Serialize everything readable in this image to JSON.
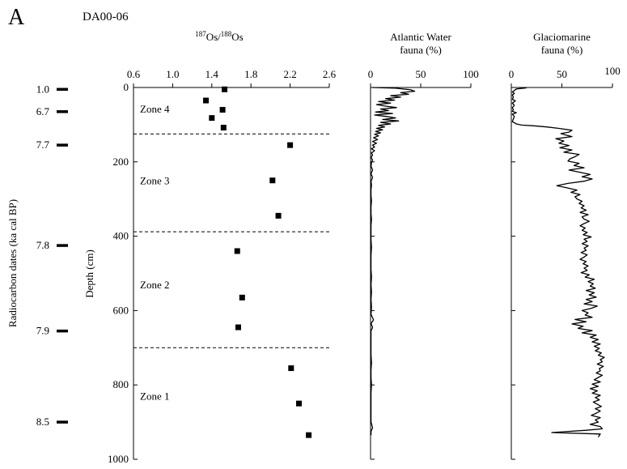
{
  "panel_label": "A",
  "core_label": "DA00-06",
  "y_axis": {
    "label": "Depth (cm)",
    "lim": [
      0,
      1000
    ],
    "ticks": [
      0,
      200,
      400,
      600,
      800,
      1000
    ],
    "tick_labels": [
      "0",
      "200",
      "400",
      "600",
      "800",
      "1000"
    ]
  },
  "radiocarbon": {
    "label": "Radiocarbon dates (ka cal BP)",
    "dates": [
      {
        "depth": 5,
        "label": "1.0"
      },
      {
        "depth": 65,
        "label": "6.7"
      },
      {
        "depth": 155,
        "label": "7.7"
      },
      {
        "depth": 425,
        "label": "7.8"
      },
      {
        "depth": 655,
        "label": "7.9"
      },
      {
        "depth": 900,
        "label": "8.5"
      }
    ]
  },
  "zones": {
    "boundaries": [
      125,
      388,
      700
    ],
    "labels": [
      {
        "name": "Zone 4",
        "depth": 68
      },
      {
        "name": "Zone 3",
        "depth": 260
      },
      {
        "name": "Zone 2",
        "depth": 540
      },
      {
        "name": "Zone 1",
        "depth": 840
      }
    ]
  },
  "chart_data": [
    {
      "type": "scatter",
      "title": "187Os/188Os",
      "title_parts": {
        "sup1": "187",
        "base1": "Os/",
        "sup2": "188",
        "base2": "Os"
      },
      "xlim": [
        0.6,
        2.6
      ],
      "xticks": [
        0.6,
        1.0,
        1.4,
        1.8,
        2.2,
        2.6
      ],
      "xtick_labels": [
        "0.6",
        "1.0",
        "1.4",
        "1.8",
        "2.2",
        "2.6"
      ],
      "points": [
        {
          "x": 1.53,
          "y": 5
        },
        {
          "x": 1.34,
          "y": 35
        },
        {
          "x": 1.51,
          "y": 60
        },
        {
          "x": 1.4,
          "y": 82
        },
        {
          "x": 1.52,
          "y": 108
        },
        {
          "x": 2.2,
          "y": 155
        },
        {
          "x": 2.02,
          "y": 250
        },
        {
          "x": 2.08,
          "y": 345
        },
        {
          "x": 1.66,
          "y": 440
        },
        {
          "x": 1.71,
          "y": 565
        },
        {
          "x": 1.67,
          "y": 645
        },
        {
          "x": 2.21,
          "y": 755
        },
        {
          "x": 2.29,
          "y": 850
        },
        {
          "x": 2.39,
          "y": 935
        }
      ]
    },
    {
      "type": "line",
      "title_lines": [
        "Atlantic Water",
        "fauna (%)"
      ],
      "xlim": [
        0,
        100
      ],
      "xticks": [
        0,
        50,
        100
      ],
      "xtick_labels": [
        "0",
        "50",
        "100"
      ],
      "points": [
        [
          2,
          0
        ],
        [
          25,
          2
        ],
        [
          40,
          6
        ],
        [
          44,
          10
        ],
        [
          30,
          14
        ],
        [
          38,
          18
        ],
        [
          20,
          22
        ],
        [
          30,
          26
        ],
        [
          15,
          30
        ],
        [
          24,
          34
        ],
        [
          8,
          38
        ],
        [
          20,
          42
        ],
        [
          6,
          46
        ],
        [
          14,
          50
        ],
        [
          26,
          54
        ],
        [
          10,
          58
        ],
        [
          18,
          62
        ],
        [
          5,
          66
        ],
        [
          22,
          70
        ],
        [
          4,
          74
        ],
        [
          16,
          78
        ],
        [
          25,
          82
        ],
        [
          12,
          86
        ],
        [
          28,
          90
        ],
        [
          10,
          94
        ],
        [
          20,
          98
        ],
        [
          8,
          102
        ],
        [
          14,
          106
        ],
        [
          6,
          110
        ],
        [
          12,
          114
        ],
        [
          5,
          118
        ],
        [
          10,
          122
        ],
        [
          4,
          126
        ],
        [
          8,
          130
        ],
        [
          3,
          135
        ],
        [
          7,
          140
        ],
        [
          2,
          145
        ],
        [
          6,
          150
        ],
        [
          2,
          155
        ],
        [
          4,
          160
        ],
        [
          1,
          165
        ],
        [
          4,
          170
        ],
        [
          1,
          176
        ],
        [
          2,
          182
        ],
        [
          0.5,
          188
        ],
        [
          2,
          195
        ],
        [
          1,
          202
        ],
        [
          0.5,
          212
        ],
        [
          2,
          222
        ],
        [
          0.5,
          232
        ],
        [
          2,
          242
        ],
        [
          0.5,
          252
        ],
        [
          1,
          262
        ],
        [
          0.5,
          275
        ],
        [
          0.5,
          290
        ],
        [
          1,
          305
        ],
        [
          0.5,
          320
        ],
        [
          0.5,
          340
        ],
        [
          1,
          355
        ],
        [
          0.5,
          370
        ],
        [
          0.5,
          390
        ],
        [
          0.5,
          410
        ],
        [
          1,
          430
        ],
        [
          0.5,
          450
        ],
        [
          0.5,
          470
        ],
        [
          0.5,
          490
        ],
        [
          1,
          510
        ],
        [
          0.5,
          530
        ],
        [
          1,
          550
        ],
        [
          0.5,
          570
        ],
        [
          1,
          590
        ],
        [
          0.5,
          610
        ],
        [
          3,
          625
        ],
        [
          0.5,
          635
        ],
        [
          2,
          645
        ],
        [
          0.5,
          655
        ],
        [
          0.5,
          680
        ],
        [
          0.5,
          700
        ],
        [
          0.5,
          720
        ],
        [
          1,
          740
        ],
        [
          0.5,
          760
        ],
        [
          0.5,
          780
        ],
        [
          1,
          800
        ],
        [
          0.5,
          820
        ],
        [
          0.5,
          840
        ],
        [
          0.5,
          860
        ],
        [
          0.5,
          880
        ],
        [
          0.5,
          900
        ],
        [
          2,
          915
        ],
        [
          0.5,
          925
        ],
        [
          0.5,
          935
        ]
      ]
    },
    {
      "type": "line",
      "title_lines": [
        "Glaciomarine",
        "fauna (%)"
      ],
      "xlim": [
        0,
        100
      ],
      "xticks": [
        0,
        50,
        100
      ],
      "xtick_labels": [
        "0",
        "50",
        "100"
      ],
      "points": [
        [
          15,
          1
        ],
        [
          5,
          4
        ],
        [
          3,
          8
        ],
        [
          1,
          12
        ],
        [
          3,
          16
        ],
        [
          1,
          20
        ],
        [
          2,
          26
        ],
        [
          1,
          32
        ],
        [
          4,
          36
        ],
        [
          1,
          42
        ],
        [
          3,
          48
        ],
        [
          1,
          54
        ],
        [
          2,
          60
        ],
        [
          1,
          64
        ],
        [
          5,
          68
        ],
        [
          1,
          72
        ],
        [
          3,
          78
        ],
        [
          2,
          85
        ],
        [
          1,
          92
        ],
        [
          5,
          98
        ],
        [
          10,
          101
        ],
        [
          22,
          103
        ],
        [
          35,
          106
        ],
        [
          47,
          110
        ],
        [
          60,
          115
        ],
        [
          57,
          120
        ],
        [
          49,
          124
        ],
        [
          54,
          128
        ],
        [
          60,
          132
        ],
        [
          44,
          138
        ],
        [
          52,
          144
        ],
        [
          47,
          150
        ],
        [
          57,
          156
        ],
        [
          48,
          162
        ],
        [
          60,
          168
        ],
        [
          52,
          174
        ],
        [
          67,
          180
        ],
        [
          63,
          186
        ],
        [
          58,
          192
        ],
        [
          56,
          198
        ],
        [
          67,
          204
        ],
        [
          62,
          210
        ],
        [
          72,
          216
        ],
        [
          57,
          222
        ],
        [
          68,
          228
        ],
        [
          78,
          234
        ],
        [
          70,
          240
        ],
        [
          80,
          246
        ],
        [
          72,
          252
        ],
        [
          56,
          258
        ],
        [
          45,
          264
        ],
        [
          55,
          270
        ],
        [
          65,
          276
        ],
        [
          59,
          282
        ],
        [
          68,
          288
        ],
        [
          63,
          294
        ],
        [
          65,
          300
        ],
        [
          70,
          306
        ],
        [
          67,
          312
        ],
        [
          72,
          318
        ],
        [
          69,
          324
        ],
        [
          74,
          330
        ],
        [
          68,
          336
        ],
        [
          76,
          342
        ],
        [
          70,
          348
        ],
        [
          72,
          354
        ],
        [
          77,
          360
        ],
        [
          72,
          366
        ],
        [
          68,
          372
        ],
        [
          73,
          378
        ],
        [
          70,
          384
        ],
        [
          75,
          390
        ],
        [
          71,
          396
        ],
        [
          79,
          402
        ],
        [
          72,
          408
        ],
        [
          75,
          414
        ],
        [
          70,
          420
        ],
        [
          76,
          426
        ],
        [
          72,
          432
        ],
        [
          74,
          438
        ],
        [
          69,
          444
        ],
        [
          75,
          450
        ],
        [
          72,
          456
        ],
        [
          68,
          462
        ],
        [
          74,
          468
        ],
        [
          71,
          474
        ],
        [
          76,
          480
        ],
        [
          72,
          486
        ],
        [
          75,
          492
        ],
        [
          69,
          498
        ],
        [
          77,
          504
        ],
        [
          73,
          510
        ],
        [
          82,
          516
        ],
        [
          76,
          522
        ],
        [
          81,
          528
        ],
        [
          78,
          534
        ],
        [
          83,
          540
        ],
        [
          74,
          546
        ],
        [
          82,
          552
        ],
        [
          77,
          558
        ],
        [
          84,
          564
        ],
        [
          74,
          570
        ],
        [
          80,
          576
        ],
        [
          72,
          582
        ],
        [
          85,
          588
        ],
        [
          79,
          594
        ],
        [
          70,
          600
        ],
        [
          76,
          606
        ],
        [
          73,
          612
        ],
        [
          80,
          618
        ],
        [
          63,
          624
        ],
        [
          74,
          630
        ],
        [
          60,
          636
        ],
        [
          71,
          642
        ],
        [
          66,
          648
        ],
        [
          80,
          654
        ],
        [
          70,
          660
        ],
        [
          84,
          666
        ],
        [
          78,
          672
        ],
        [
          86,
          678
        ],
        [
          80,
          684
        ],
        [
          88,
          690
        ],
        [
          82,
          696
        ],
        [
          87,
          702
        ],
        [
          83,
          708
        ],
        [
          89,
          714
        ],
        [
          86,
          720
        ],
        [
          92,
          726
        ],
        [
          88,
          732
        ],
        [
          90,
          738
        ],
        [
          85,
          744
        ],
        [
          91,
          750
        ],
        [
          87,
          756
        ],
        [
          88,
          762
        ],
        [
          84,
          768
        ],
        [
          90,
          774
        ],
        [
          86,
          780
        ],
        [
          82,
          786
        ],
        [
          88,
          792
        ],
        [
          80,
          798
        ],
        [
          86,
          804
        ],
        [
          78,
          810
        ],
        [
          85,
          816
        ],
        [
          80,
          822
        ],
        [
          88,
          828
        ],
        [
          83,
          834
        ],
        [
          87,
          840
        ],
        [
          81,
          846
        ],
        [
          85,
          852
        ],
        [
          89,
          858
        ],
        [
          83,
          864
        ],
        [
          88,
          870
        ],
        [
          84,
          876
        ],
        [
          79,
          882
        ],
        [
          88,
          888
        ],
        [
          83,
          894
        ],
        [
          86,
          900
        ],
        [
          78,
          906
        ],
        [
          88,
          912
        ],
        [
          90,
          918
        ],
        [
          74,
          922
        ],
        [
          40,
          928
        ],
        [
          88,
          932
        ],
        [
          86,
          940
        ]
      ]
    }
  ]
}
